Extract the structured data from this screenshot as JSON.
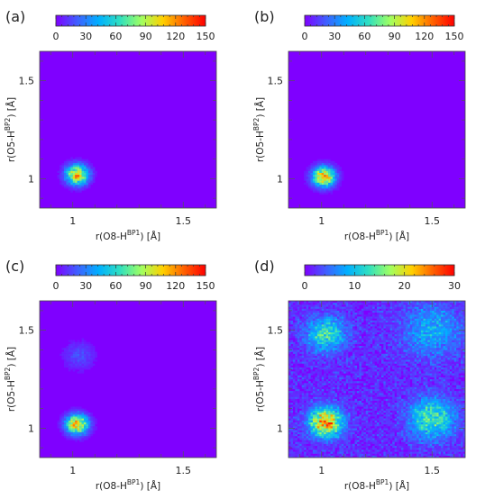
{
  "figure": {
    "background": "#ffffff",
    "heatmap_background": "#7f00ff",
    "colormap": "rainbow (purple to red)",
    "colormap_stops": [
      "#7f00ff",
      "#3f5fff",
      "#00b0ff",
      "#30e0c0",
      "#a0ff60",
      "#ffd000",
      "#ff6000",
      "#ff0000"
    ]
  },
  "chart_data": [
    {
      "type": "heatmap",
      "panel": "(a)",
      "xlabel": "r(O8-H",
      "xlabel_sup": "BP1",
      "xlabel_suffix": ") [Å]",
      "ylabel": "r(O5-H",
      "ylabel_sup": "BP2",
      "ylabel_suffix": ") [Å]",
      "xlim": [
        0.85,
        1.65
      ],
      "ylim": [
        0.85,
        1.65
      ],
      "xticks": [
        "1",
        "1.5"
      ],
      "yticks": [
        "1",
        "1.5"
      ],
      "colorbar": {
        "min": 0,
        "max": 150,
        "ticks": [
          "0",
          "30",
          "60",
          "90",
          "120",
          "150"
        ]
      },
      "clusters": [
        {
          "x": 1.02,
          "y": 1.02,
          "peak": 110,
          "spread": 0.035
        }
      ]
    },
    {
      "type": "heatmap",
      "panel": "(b)",
      "xlabel": "r(O8-H",
      "xlabel_sup": "BP1",
      "xlabel_suffix": ") [Å]",
      "ylabel": "r(O5-H",
      "ylabel_sup": "BP2",
      "ylabel_suffix": ") [Å]",
      "xlim": [
        0.85,
        1.65
      ],
      "ylim": [
        0.85,
        1.65
      ],
      "xticks": [
        "1",
        "1.5"
      ],
      "yticks": [
        "1",
        "1.5"
      ],
      "colorbar": {
        "min": 0,
        "max": 150,
        "ticks": [
          "0",
          "30",
          "60",
          "90",
          "120",
          "150"
        ]
      },
      "clusters": [
        {
          "x": 1.01,
          "y": 1.01,
          "peak": 115,
          "spread": 0.035
        }
      ]
    },
    {
      "type": "heatmap",
      "panel": "(c)",
      "xlabel": "r(O8-H",
      "xlabel_sup": "BP1",
      "xlabel_suffix": ") [Å]",
      "ylabel": "r(O5-H",
      "ylabel_sup": "BP2",
      "ylabel_suffix": ") [Å]",
      "xlim": [
        0.85,
        1.65
      ],
      "ylim": [
        0.85,
        1.65
      ],
      "xticks": [
        "1",
        "1.5"
      ],
      "yticks": [
        "1",
        "1.5"
      ],
      "colorbar": {
        "min": 0,
        "max": 150,
        "ticks": [
          "0",
          "30",
          "60",
          "90",
          "120",
          "150"
        ]
      },
      "clusters": [
        {
          "x": 1.02,
          "y": 1.02,
          "peak": 110,
          "spread": 0.035
        },
        {
          "x": 1.03,
          "y": 1.37,
          "peak": 18,
          "spread": 0.05
        }
      ]
    },
    {
      "type": "heatmap",
      "panel": "(d)",
      "xlabel": "r(O8-H",
      "xlabel_sup": "BP1",
      "xlabel_suffix": ") [Å]",
      "ylabel": "r(O5-H",
      "ylabel_sup": "BP2",
      "ylabel_suffix": ") [Å]",
      "xlim": [
        0.85,
        1.65
      ],
      "ylim": [
        0.85,
        1.65
      ],
      "xticks": [
        "1",
        "1.5"
      ],
      "yticks": [
        "1",
        "1.5"
      ],
      "colorbar": {
        "min": 0,
        "max": 30,
        "ticks": [
          "0",
          "10",
          "20",
          "30"
        ]
      },
      "clusters": [
        {
          "x": 1.02,
          "y": 1.03,
          "peak": 22,
          "spread": 0.05
        },
        {
          "x": 1.02,
          "y": 1.48,
          "peak": 11,
          "spread": 0.06
        },
        {
          "x": 1.5,
          "y": 1.05,
          "peak": 12,
          "spread": 0.07
        },
        {
          "x": 1.5,
          "y": 1.5,
          "peak": 7,
          "spread": 0.09
        }
      ],
      "noise_level": 4
    }
  ]
}
